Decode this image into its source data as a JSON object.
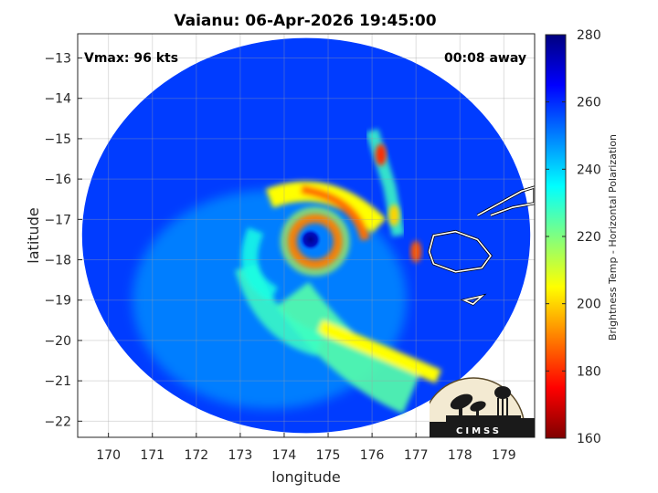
{
  "chart_data": {
    "type": "heatmap",
    "title": "Vaianu: 06-Apr-2026 19:45:00",
    "xlabel": "longitude",
    "ylabel": "latitude",
    "xlim": [
      169.3,
      179.7
    ],
    "ylim": [
      -22.4,
      -12.4
    ],
    "x_ticks": [
      170,
      171,
      172,
      173,
      174,
      175,
      176,
      177,
      178,
      179
    ],
    "y_ticks": [
      -13,
      -14,
      -15,
      -16,
      -17,
      -18,
      -19,
      -20,
      -21,
      -22
    ],
    "grid": true,
    "annotations": {
      "vmax": "Vmax: 96 kts",
      "time_offset": "00:08 away"
    },
    "colorbar": {
      "label": "Brightness Temp - Horizontal Polarization",
      "ticks": [
        160,
        180,
        200,
        220,
        240,
        260,
        280
      ],
      "range": [
        160,
        280
      ],
      "colormap": "jet",
      "colors": [
        "#7f0000",
        "#ff0000",
        "#ff8000",
        "#ffff00",
        "#80ff80",
        "#00ffff",
        "#0080ff",
        "#0000ff",
        "#00007f"
      ]
    },
    "storm": {
      "eye_center": [
        174.6,
        -17.5
      ],
      "eye_bt": 265,
      "eyewall_bt": 190,
      "swath_center": [
        174.5,
        -17.4
      ],
      "swath_radius_deg": 5.1
    },
    "hotspots": [
      {
        "lon": 176.2,
        "lat": -15.4,
        "bt": 180
      },
      {
        "lon": 177.0,
        "lat": -17.8,
        "bt": 185
      },
      {
        "lon": 176.5,
        "lat": -16.9,
        "bt": 200
      }
    ]
  },
  "logo": {
    "text": "CIMSS"
  }
}
